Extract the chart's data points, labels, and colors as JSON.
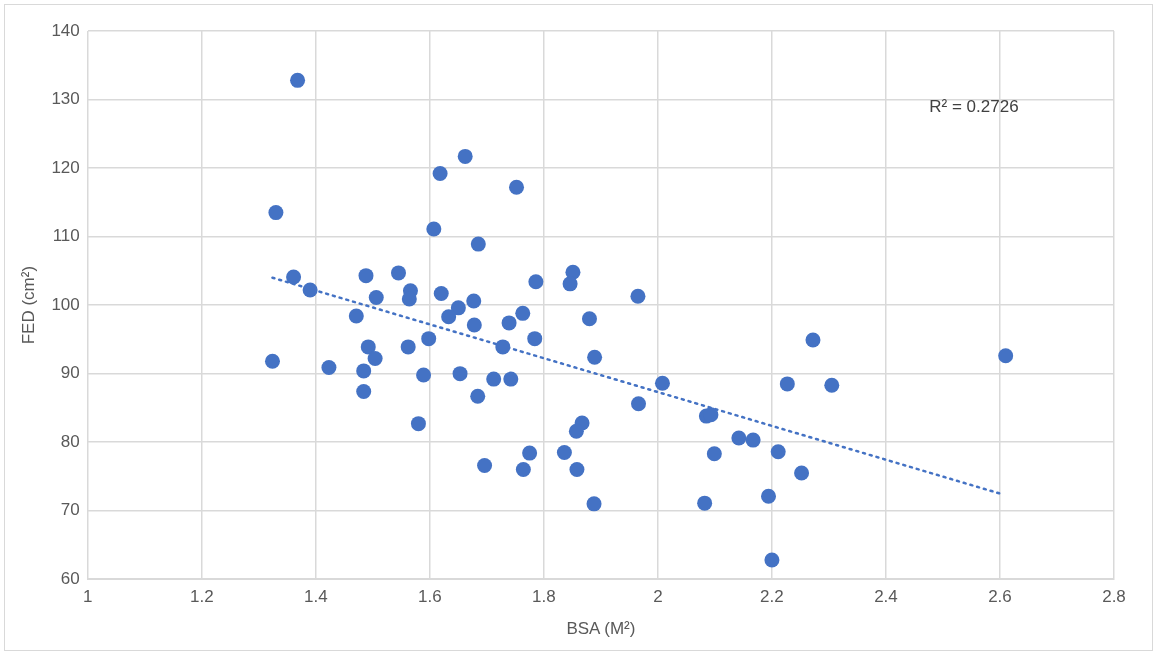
{
  "chart_data": {
    "type": "scatter",
    "xlabel": "BSA (M²)",
    "ylabel": "FED (cm²)",
    "xlim": [
      1,
      2.8
    ],
    "xticks": [
      1,
      1.2,
      1.4,
      1.6,
      1.8,
      2,
      2.2,
      2.4,
      2.6,
      2.8
    ],
    "ylim": [
      60,
      140
    ],
    "yticks": [
      60,
      70,
      80,
      90,
      100,
      110,
      120,
      130,
      140
    ],
    "grid": true,
    "legend": false,
    "marker": "circle",
    "annotations": [
      "R² = 0.2726"
    ],
    "series": [
      {
        "color": "#4472c4",
        "x": [
          1.368,
          1.33,
          1.662,
          1.618,
          1.752,
          1.607,
          1.685,
          1.361,
          1.488,
          1.545,
          1.851,
          1.846,
          1.786,
          1.965,
          1.39,
          1.506,
          1.566,
          1.564,
          1.62,
          1.677,
          1.65,
          1.633,
          1.471,
          1.763,
          1.88,
          1.678,
          1.739,
          1.784,
          1.598,
          1.728,
          1.562,
          1.492,
          1.889,
          1.504,
          1.324,
          1.423,
          1.484,
          1.484,
          1.589,
          1.653,
          1.712,
          1.742,
          1.684,
          1.966,
          1.58,
          1.867,
          1.857,
          1.775,
          1.836,
          1.696,
          1.764,
          1.858,
          1.888,
          2.272,
          2.61,
          2.008,
          2.227,
          2.305,
          2.085,
          2.093,
          2.142,
          2.167,
          2.211,
          2.099,
          2.252,
          2.194,
          2.082,
          2.2
        ],
        "values": [
          132.8,
          113.5,
          121.7,
          119.2,
          117.2,
          111.1,
          108.9,
          104.1,
          104.3,
          104.7,
          104.8,
          103.1,
          103.4,
          101.3,
          102.2,
          101.1,
          102.1,
          100.9,
          101.7,
          100.6,
          99.6,
          98.3,
          98.4,
          98.8,
          98.0,
          97.1,
          97.4,
          95.1,
          95.1,
          93.9,
          93.9,
          93.9,
          92.4,
          92.2,
          91.8,
          90.9,
          90.4,
          87.4,
          89.8,
          90.0,
          89.2,
          89.2,
          86.7,
          85.6,
          82.7,
          82.8,
          81.6,
          78.4,
          78.5,
          76.6,
          76.0,
          76.0,
          71.0,
          94.9,
          92.6,
          88.6,
          88.5,
          88.3,
          83.8,
          84.0,
          80.6,
          80.3,
          78.6,
          78.3,
          75.5,
          72.1,
          71.1,
          62.8
        ]
      },
      {
        "type": "line",
        "color": "#4472c4",
        "line_style": "dotted",
        "marker": "none",
        "x": [
          1.324,
          2.6
        ],
        "values": [
          104.0,
          72.5
        ]
      }
    ]
  }
}
